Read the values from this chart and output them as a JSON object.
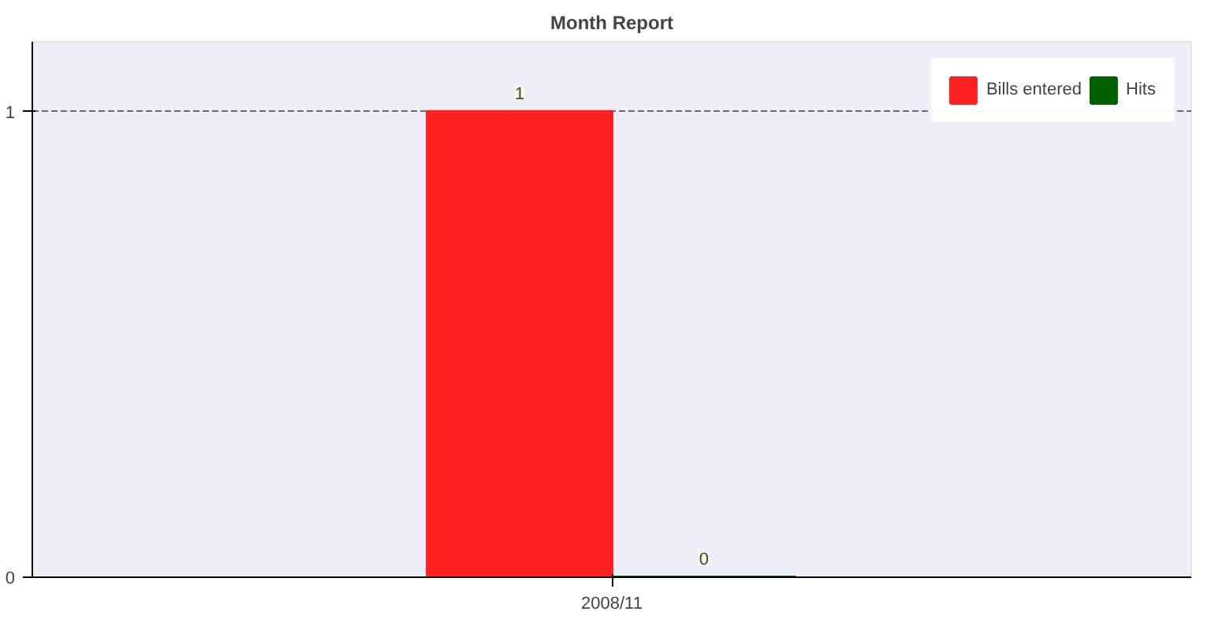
{
  "chart_data": {
    "type": "bar",
    "title": "Month Report",
    "categories": [
      "2008/11"
    ],
    "series": [
      {
        "name": "Bills entered",
        "color": "#ff2020",
        "values": [
          1
        ]
      },
      {
        "name": "Hits",
        "color": "#006000",
        "values": [
          0
        ]
      }
    ],
    "ylim": [
      0,
      1.15
    ],
    "yticks": [
      0,
      1
    ],
    "grid": "y",
    "legend": "top right",
    "data_labels": true
  }
}
